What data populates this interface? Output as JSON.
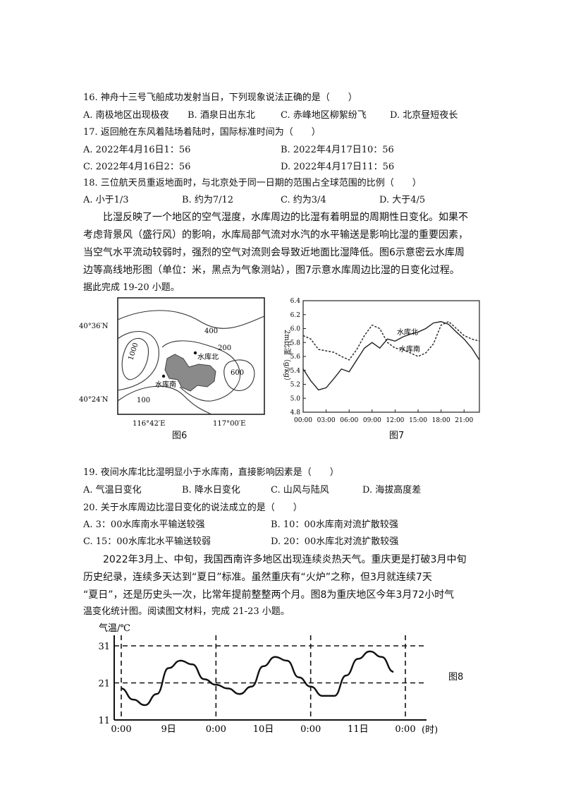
{
  "q16": {
    "stem": "16. 神舟十三号飞船成功发射当日，下列现象说法正确的是（　　）",
    "options": [
      "A. 南极地区出现极夜",
      "B. 酒泉日出东北",
      "C. 赤峰地区柳絮纷飞",
      "D. 北京昼短夜长"
    ]
  },
  "q17": {
    "stem": "17. 返回舱在东风着陆场着陆时，国际标准时间为（　　）",
    "options": [
      "A. 2022年4月16日1：56",
      "B. 2022年4月17日10：56",
      "C. 2022年4月16日2：56",
      "D. 2022年4月17日11：56"
    ]
  },
  "q18": {
    "stem": "18. 三位航天员重返地面时，与北京处于同一日期的范围占全球范围的比例（　　）",
    "options": [
      "A. 小于1/3",
      "B. 约为7/12",
      "C. 约为3/4",
      "D. 大于4/5"
    ]
  },
  "passage1": [
    "　　比湿反映了一个地区的空气湿度，水库周边的比湿有着明显的周期性日变化。如果不",
    "考虑背景风（盛行风）的影响，水库局部气流对水汽的水平输送是影响比湿的重要因素，",
    "当空气水平流动较弱时，强烈的空气对流则会导致近地面比湿降低。图6示意密云水库周",
    "边等高线地形图（单位：米，黑点为气象测站），图7示意水库周边比湿的日变化过程。"
  ],
  "passage1_tail": "据此完成 19-20 小题。",
  "fig6": {
    "caption": "图6",
    "lat_top": "40°36′N",
    "lat_bottom": "40°24′N",
    "lon_left": "116°42′E",
    "lon_right": "117°00′E",
    "contours": [
      "400",
      "200",
      "1000",
      "600",
      "100"
    ],
    "stations": [
      "水库北",
      "水库南"
    ]
  },
  "fig7": {
    "caption": "图7",
    "ylabel": "2m比湿（g/kg）",
    "legend": [
      "水库北",
      "水库南"
    ]
  },
  "q19": {
    "stem": "19. 夜间水库北比湿明显小于水库南，直接影响因素是（　　）",
    "options": [
      "A. 气温日变化",
      "B. 降水日变化",
      "C. 山风与陆风",
      "D. 海拔高度差"
    ]
  },
  "q20": {
    "stem": "20. 关于水库周边比湿日变化的说法成立的是（　　）",
    "options": [
      "A. 3：00水库南水平输送较强",
      "B. 10：00水库南对流扩散较强",
      "C. 15：00水库北水平输送较弱",
      "D. 20：00水库北对流扩散较强"
    ]
  },
  "passage2": [
    "　　2022年3月上、中旬，我国西南许多地区出现连续炎热天气。重庆更是打破3月中旬",
    "历史纪录，连续多天达到“夏日”标准。虽然重庆有“火炉”之称，但3月就连续7天",
    "“夏日”，还是历史头一次，比常年提前整整两个月。图8为重庆地区今年3月72小时气"
  ],
  "passage2_tail": "温变化统计图。阅读图文材料，完成 21-23 小题。",
  "fig8": {
    "caption": "图8",
    "ylabel": "气温/℃",
    "xunit": "(时)"
  },
  "chart_data": [
    {
      "type": "line",
      "title": "图7",
      "ylabel": "2m比湿（g/kg）",
      "xlabel": "",
      "ylim": [
        4.8,
        6.4
      ],
      "y_ticks": [
        "4.8",
        "5.0",
        "5.2",
        "5.4",
        "5.6",
        "5.8",
        "6.0",
        "6.2",
        "6.4"
      ],
      "x_ticks": [
        "00:00",
        "03:00",
        "06:00",
        "09:00",
        "12:00",
        "15:00",
        "18:00",
        "21:00"
      ],
      "x_hours": [
        0,
        1,
        2,
        3,
        4,
        5,
        6,
        7,
        8,
        9,
        10,
        11,
        12,
        13,
        14,
        15,
        16,
        17,
        18,
        19,
        20,
        21,
        22,
        23
      ],
      "series": [
        {
          "name": "水库北",
          "style": "solid",
          "values": [
            5.42,
            5.25,
            5.12,
            5.15,
            5.28,
            5.42,
            5.38,
            5.55,
            5.72,
            5.8,
            5.72,
            5.85,
            5.82,
            5.88,
            5.92,
            5.95,
            6.0,
            6.08,
            6.1,
            6.06,
            5.95,
            5.85,
            5.72,
            5.55
          ]
        },
        {
          "name": "水库南",
          "style": "dashed",
          "values": [
            5.9,
            5.85,
            5.7,
            5.68,
            5.66,
            5.6,
            5.55,
            5.7,
            5.9,
            6.05,
            6.0,
            5.8,
            5.72,
            5.7,
            5.65,
            5.6,
            5.65,
            5.78,
            6.05,
            6.1,
            6.0,
            5.9,
            5.85,
            5.82
          ]
        }
      ]
    },
    {
      "type": "line",
      "title": "图8",
      "ylabel": "气温/℃",
      "xlabel": "(时)",
      "ylim": [
        11,
        31
      ],
      "y_ticks": [
        "11",
        "21",
        "31"
      ],
      "x_ticks": [
        "0:00",
        "9日",
        "0:00",
        "10日",
        "0:00",
        "11日",
        "0:00"
      ],
      "x_hours": [
        0,
        3,
        6,
        9,
        12,
        15,
        18,
        21,
        24,
        27,
        30,
        33,
        36,
        39,
        42,
        45,
        48,
        51,
        54,
        57,
        60,
        63,
        66,
        69
      ],
      "series": [
        {
          "name": "",
          "style": "solid",
          "values": [
            19.5,
            16.5,
            15.0,
            18.0,
            25.0,
            27.0,
            26.0,
            22.0,
            20.5,
            19.5,
            18.0,
            20.0,
            25.5,
            28.0,
            27.0,
            22.5,
            20.0,
            17.5,
            17.5,
            23.0,
            27.5,
            29.5,
            28.0,
            24.0
          ]
        }
      ]
    }
  ]
}
